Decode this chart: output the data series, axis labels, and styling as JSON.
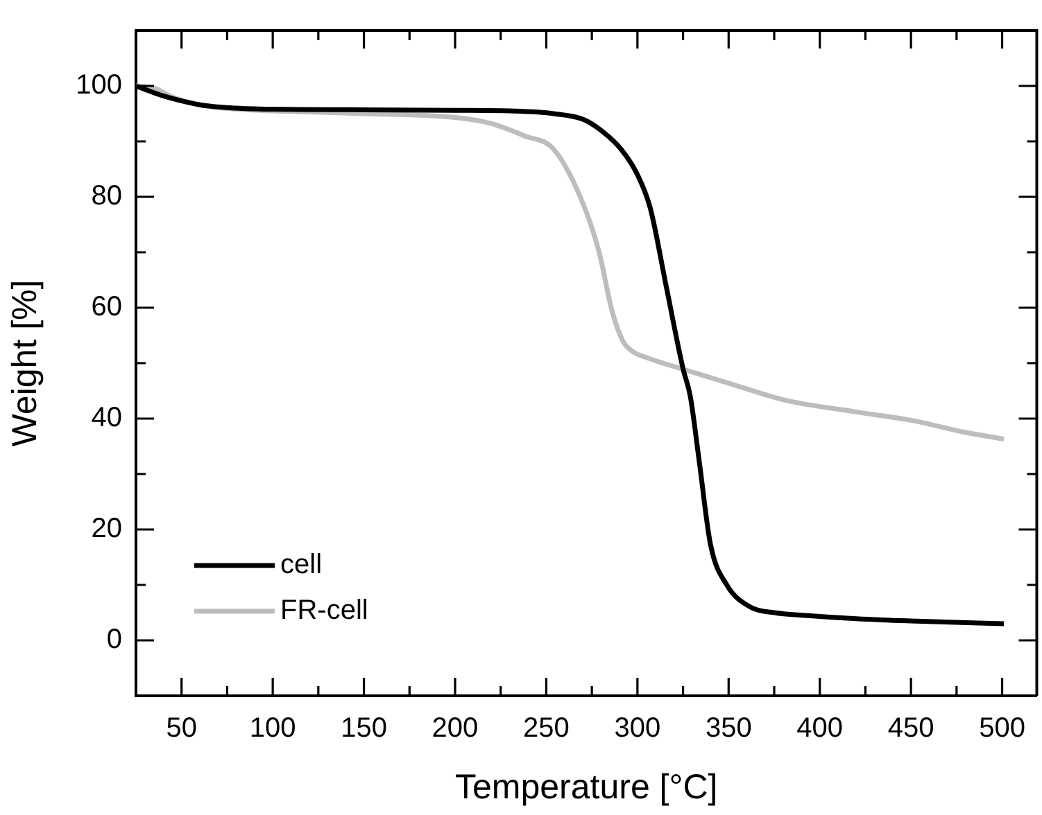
{
  "chart_data": {
    "type": "line",
    "xlabel": "Temperature [°C]",
    "ylabel": "Weight [%]",
    "xlim": [
      25,
      519
    ],
    "ylim": [
      -10,
      110
    ],
    "xticks": [
      50,
      {
        "value": 75,
        "label": null
      },
      100,
      {
        "value": 125,
        "label": null
      },
      150,
      {
        "value": 175,
        "label": null
      },
      200,
      {
        "value": 225,
        "label": null
      },
      250,
      {
        "value": 275,
        "label": null
      },
      300,
      {
        "value": 325,
        "label": null
      },
      350,
      {
        "value": 375,
        "label": null
      },
      400,
      {
        "value": 425,
        "label": null
      },
      450,
      {
        "value": 475,
        "label": null
      },
      500
    ],
    "yticks": [
      {
        "value": -10,
        "label": null
      },
      0,
      {
        "value": 10,
        "label": null
      },
      20,
      {
        "value": 30,
        "label": null
      },
      40,
      {
        "value": 50,
        "label": null
      },
      60,
      {
        "value": 70,
        "label": null
      },
      80,
      {
        "value": 90,
        "label": null
      },
      100
    ],
    "legend": "bottom left",
    "grid": false,
    "marker": "none",
    "line_style": "solid",
    "series": [
      {
        "name": "cell",
        "color": "#000000",
        "x": [
          25,
          40,
          60,
          80,
          100,
          150,
          200,
          230,
          254,
          270,
          280,
          291,
          300,
          307,
          316,
          325,
          329,
          334,
          340,
          349,
          362,
          375,
          392,
          420,
          450,
          501
        ],
        "values": [
          100,
          98.2,
          96.6,
          96,
          95.8,
          95.7,
          95.6,
          95.5,
          95,
          94,
          92,
          88.6,
          84,
          78,
          63.5,
          49,
          44,
          32,
          17.4,
          10,
          6,
          5,
          4.5,
          3.9,
          3.5,
          3
        ]
      },
      {
        "name": "FR-cell",
        "color": "#bdbdbd",
        "x": [
          25,
          35,
          45,
          60,
          80,
          100,
          150,
          200,
          220,
          238,
          254,
          269,
          279,
          286,
          292,
          297,
          305,
          324,
          350,
          380,
          420,
          450,
          480,
          501
        ],
        "values": [
          100,
          99.6,
          98,
          96.6,
          95.8,
          95.5,
          95,
          94.3,
          93.2,
          91,
          88.6,
          79.7,
          70,
          59.5,
          54,
          52.2,
          51,
          49,
          46.4,
          43.4,
          41.2,
          39.7,
          37.5,
          36.3
        ]
      }
    ]
  }
}
